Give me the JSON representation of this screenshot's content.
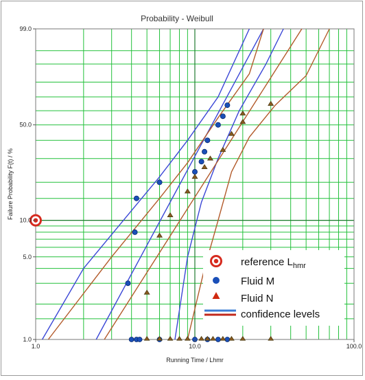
{
  "chart_data": {
    "type": "scatter",
    "title": "Probability - Weibull",
    "xlabel": "Running Time / Lhmr",
    "ylabel": "Failure Probability F(t) / %",
    "x_scale": "log",
    "y_scale": "weibull",
    "xlim": [
      1.0,
      100.0
    ],
    "ylim": [
      1.0,
      99.0
    ],
    "x_tick_labels": [
      "1.0",
      "10.0",
      "100.0"
    ],
    "y_tick_labels": [
      "1.0",
      "5.0",
      "10.0",
      "50.0",
      "99.0"
    ],
    "grid": true,
    "grid_color": "#22c03a",
    "legend_position": "bottom-right",
    "reference_point": {
      "name": "reference Lhmr",
      "x": 1.0,
      "y": 10.0,
      "color": "#d62a1e"
    },
    "series": [
      {
        "name": "Fluid M",
        "marker": "circle",
        "color": "#1a4fb8",
        "edge": "#0b2b6e",
        "points": [
          [
            3.8,
            3.0
          ],
          [
            4.2,
            8.0
          ],
          [
            4.3,
            15.0
          ],
          [
            6.0,
            20.0
          ],
          [
            10.0,
            24.0
          ],
          [
            11.0,
            28.5
          ],
          [
            11.5,
            33.5
          ],
          [
            12.0,
            40.0
          ],
          [
            14.0,
            50.0
          ],
          [
            15.0,
            56.0
          ],
          [
            16.0,
            64.0
          ]
        ],
        "suspended_x": [
          4.0,
          4.3,
          4.5,
          6.0,
          10.0,
          12.0,
          14.0,
          16.0
        ]
      },
      {
        "name": "Fluid N",
        "marker": "triangle",
        "color": "#d02a10",
        "edge": "#4a3a10",
        "points": [
          [
            5.0,
            2.5
          ],
          [
            6.0,
            7.5
          ],
          [
            7.0,
            11.0
          ],
          [
            9.0,
            17.0
          ],
          [
            10.0,
            22.0
          ],
          [
            11.5,
            26.0
          ],
          [
            12.5,
            30.0
          ],
          [
            15.0,
            34.5
          ],
          [
            17.0,
            44.0
          ],
          [
            20.0,
            52.0
          ],
          [
            20.0,
            58.0
          ],
          [
            30.0,
            65.0
          ]
        ],
        "suspended_x": [
          5.0,
          6.0,
          7.0,
          8.0,
          9.0,
          11.0,
          12.0,
          13.0,
          15.0,
          17.0,
          20.0,
          30.0
        ]
      }
    ],
    "fit_lines": [
      {
        "series": "Fluid M",
        "kind": "fit",
        "color": "#3a46d6",
        "points": [
          [
            2.4,
            1.0
          ],
          [
            27.0,
            99.0
          ]
        ]
      },
      {
        "series": "Fluid M",
        "kind": "confidence",
        "color": "#3a46d6",
        "points": [
          [
            1.1,
            1.0
          ],
          [
            2.0,
            4.0
          ],
          [
            4.0,
            12.0
          ],
          [
            6.0,
            22.0
          ],
          [
            9.0,
            40.0
          ],
          [
            14.0,
            70.0
          ],
          [
            22.0,
            99.0
          ]
        ]
      },
      {
        "series": "Fluid M",
        "kind": "confidence",
        "color": "#3a46d6",
        "points": [
          [
            7.5,
            1.0
          ],
          [
            9.0,
            5.0
          ],
          [
            11.0,
            14.0
          ],
          [
            14.0,
            30.0
          ],
          [
            19.0,
            60.0
          ],
          [
            28.0,
            90.0
          ],
          [
            36.0,
            99.0
          ]
        ]
      },
      {
        "series": "Fluid N",
        "kind": "fit",
        "color": "#b25a2a",
        "points": [
          [
            2.7,
            1.0
          ],
          [
            47.0,
            99.0
          ]
        ]
      },
      {
        "series": "Fluid N",
        "kind": "confidence",
        "color": "#b25a2a",
        "points": [
          [
            1.2,
            1.0
          ],
          [
            3.0,
            5.0
          ],
          [
            6.0,
            15.0
          ],
          [
            9.0,
            28.0
          ],
          [
            14.0,
            55.0
          ],
          [
            22.0,
            85.0
          ],
          [
            27.0,
            99.0
          ]
        ]
      },
      {
        "series": "Fluid N",
        "kind": "confidence",
        "color": "#b25a2a",
        "points": [
          [
            9.0,
            1.0
          ],
          [
            11.5,
            4.0
          ],
          [
            14.0,
            10.0
          ],
          [
            17.0,
            24.0
          ],
          [
            22.0,
            42.0
          ],
          [
            32.0,
            64.0
          ],
          [
            50.0,
            84.0
          ],
          [
            70.0,
            99.0
          ]
        ]
      }
    ],
    "legend": {
      "reference": "reference L",
      "reference_sub": "hmr",
      "fluid_m": "Fluid M",
      "fluid_n": "Fluid N",
      "confidence": "confidence levels",
      "confidence_colors": [
        "#3a7bd5",
        "#c0281c"
      ]
    }
  }
}
